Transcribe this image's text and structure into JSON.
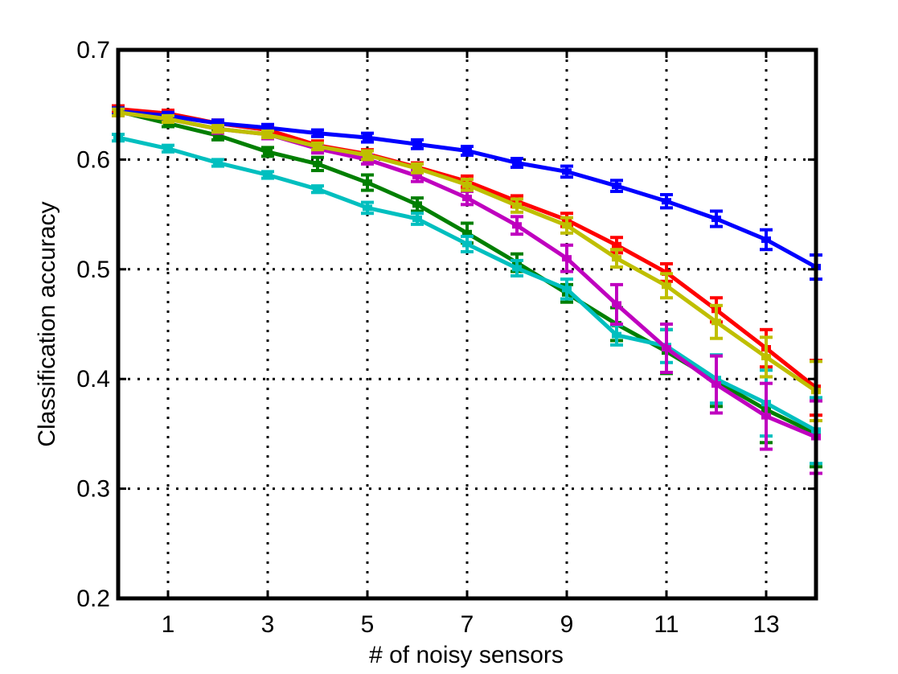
{
  "chart_data": {
    "type": "line",
    "title": "",
    "xlabel": "# of noisy sensors",
    "ylabel": "Classification accuracy",
    "xlim": [
      0,
      14
    ],
    "ylim": [
      0.2,
      0.7
    ],
    "xticks": [
      1,
      3,
      5,
      7,
      9,
      11,
      13
    ],
    "xtick_labels": [
      "1",
      "3",
      "5",
      "7",
      "9",
      "11",
      "13"
    ],
    "yticks": [
      0.2,
      0.3,
      0.4,
      0.5,
      0.6,
      0.7
    ],
    "ytick_labels": [
      "0.2",
      "0.3",
      "0.4",
      "0.5",
      "0.6",
      "0.7"
    ],
    "grid": true,
    "legend": "none",
    "x": [
      0,
      1,
      2,
      3,
      4,
      5,
      6,
      7,
      8,
      9,
      10,
      11,
      12,
      13,
      14
    ],
    "series": [
      {
        "color": "#ff0000",
        "values": [
          0.646,
          0.642,
          0.633,
          0.627,
          0.613,
          0.605,
          0.593,
          0.58,
          0.562,
          0.545,
          0.522,
          0.497,
          0.463,
          0.428,
          0.392
        ],
        "errors": [
          0.003,
          0.003,
          0.003,
          0.003,
          0.004,
          0.004,
          0.004,
          0.005,
          0.005,
          0.006,
          0.007,
          0.008,
          0.011,
          0.017,
          0.025
        ]
      },
      {
        "color": "#007f00",
        "values": [
          0.644,
          0.633,
          0.622,
          0.607,
          0.596,
          0.579,
          0.559,
          0.533,
          0.506,
          0.478,
          0.45,
          0.425,
          0.398,
          0.372,
          0.35
        ],
        "errors": [
          0.003,
          0.003,
          0.004,
          0.004,
          0.006,
          0.007,
          0.006,
          0.009,
          0.008,
          0.008,
          0.015,
          0.02,
          0.023,
          0.03,
          0.03
        ]
      },
      {
        "color": "#00bfbf",
        "values": [
          0.62,
          0.61,
          0.597,
          0.586,
          0.573,
          0.556,
          0.546,
          0.523,
          0.501,
          0.482,
          0.44,
          0.43,
          0.4,
          0.378,
          0.353
        ],
        "errors": [
          0.003,
          0.003,
          0.003,
          0.003,
          0.003,
          0.005,
          0.005,
          0.007,
          0.007,
          0.009,
          0.009,
          0.015,
          0.022,
          0.03,
          0.03
        ]
      },
      {
        "color": "#bf00bf",
        "values": [
          0.643,
          0.637,
          0.628,
          0.623,
          0.61,
          0.6,
          0.585,
          0.565,
          0.54,
          0.51,
          0.468,
          0.428,
          0.395,
          0.366,
          0.347
        ],
        "errors": [
          0.003,
          0.003,
          0.004,
          0.004,
          0.004,
          0.004,
          0.005,
          0.006,
          0.008,
          0.012,
          0.018,
          0.022,
          0.026,
          0.03,
          0.033
        ]
      },
      {
        "color": "#0000ff",
        "values": [
          0.644,
          0.64,
          0.633,
          0.629,
          0.624,
          0.62,
          0.614,
          0.608,
          0.597,
          0.589,
          0.576,
          0.562,
          0.546,
          0.527,
          0.502
        ],
        "errors": [
          0.003,
          0.003,
          0.003,
          0.003,
          0.003,
          0.004,
          0.004,
          0.004,
          0.004,
          0.005,
          0.005,
          0.006,
          0.007,
          0.009,
          0.011
        ]
      },
      {
        "color": "#bfbf00",
        "values": [
          0.643,
          0.637,
          0.628,
          0.623,
          0.612,
          0.604,
          0.592,
          0.577,
          0.558,
          0.54,
          0.51,
          0.485,
          0.452,
          0.42,
          0.389
        ],
        "errors": [
          0.003,
          0.003,
          0.003,
          0.003,
          0.003,
          0.004,
          0.004,
          0.005,
          0.006,
          0.007,
          0.008,
          0.011,
          0.015,
          0.018,
          0.027
        ]
      }
    ]
  }
}
